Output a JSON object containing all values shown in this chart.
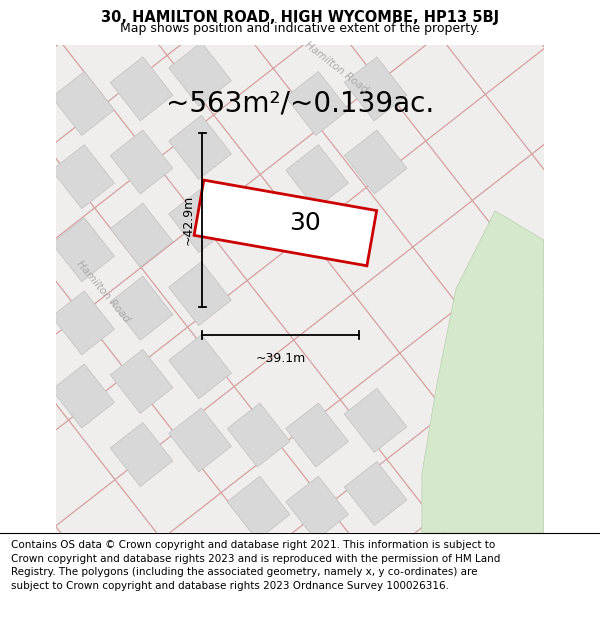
{
  "title": "30, HAMILTON ROAD, HIGH WYCOMBE, HP13 5BJ",
  "subtitle": "Map shows position and indicative extent of the property.",
  "area_label": "~563m²/~0.139ac.",
  "dim_width_label": "~39.1m",
  "dim_height_label": "~42.9m",
  "plot_number": "30",
  "footer": "Contains OS data © Crown copyright and database right 2021. This information is subject to Crown copyright and database rights 2023 and is reproduced with the permission of HM Land Registry. The polygons (including the associated geometry, namely x, y co-ordinates) are subject to Crown copyright and database rights 2023 Ordnance Survey 100026316.",
  "map_bg": "#f0eeec",
  "road_label_top": "Hamilton Road",
  "road_label_left": "Hamilton Road",
  "title_fontsize": 10.5,
  "subtitle_fontsize": 9,
  "area_fontsize": 20,
  "footer_fontsize": 7.5,
  "road_color": "#d4a0a0",
  "block_color": "#d8d8d8",
  "block_edge": "#c0c0c0",
  "green_color": "#d5e8cc",
  "plot_color": "#cc0000",
  "plot_fill": "white"
}
